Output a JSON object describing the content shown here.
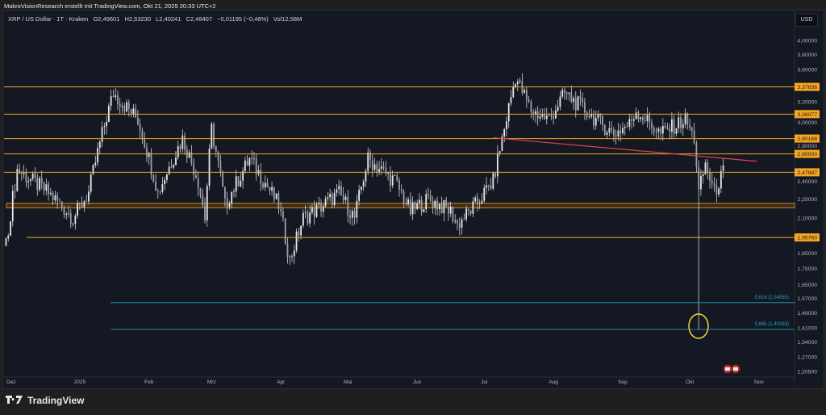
{
  "header": {
    "attribution": "MakroVisionResearch erstellt mit TradingView.com, Okt 21, 2025 20:33 UTC+2"
  },
  "legend": {
    "symbol": "XRP / US Dollar · 1T · Kraken",
    "open": "O2,49601",
    "high": "H2,53230",
    "low": "L2,40241",
    "close": "C2,48407",
    "change": "−0,01195 (−0,48%)",
    "volume": "Vol12,58M"
  },
  "currency": "USD",
  "footer": {
    "brand": "TradingView"
  },
  "colors": {
    "level": "#f5a623",
    "trend": "#e0405a",
    "fib": "#1ea7c4",
    "circle": "#f2d338",
    "candle": "#e8e8e8"
  },
  "chart_data": {
    "type": "candlestick",
    "scale": "log",
    "price_ticks": [
      "4,00000",
      "3,80000",
      "3,60000",
      "3,20000",
      "3,00000",
      "2,80000",
      "2,40000",
      "2,25000",
      "2,10000",
      "1,85000",
      "1,75000",
      "1,65000",
      "1,57000",
      "1,49000",
      "1,41000",
      "1,34000",
      "1,27000",
      "1,20500"
    ],
    "price_tick_values": [
      4.0,
      3.8,
      3.6,
      3.2,
      3.0,
      2.8,
      2.4,
      2.25,
      2.1,
      1.85,
      1.75,
      1.65,
      1.57,
      1.49,
      1.41,
      1.34,
      1.27,
      1.205
    ],
    "time_ticks": [
      {
        "label": "Dez",
        "day": 0
      },
      {
        "label": "2025",
        "day": 31
      },
      {
        "label": "Feb",
        "day": 62
      },
      {
        "label": "Mrz",
        "day": 90
      },
      {
        "label": "Apr",
        "day": 121
      },
      {
        "label": "Mai",
        "day": 151
      },
      {
        "label": "Jun",
        "day": 182
      },
      {
        "label": "Jul",
        "day": 212
      },
      {
        "label": "Aug",
        "day": 243
      },
      {
        "label": "Sep",
        "day": 274
      },
      {
        "label": "Okt",
        "day": 304
      },
      {
        "label": "Nov",
        "day": 335
      }
    ],
    "close_path_day_price": [
      [
        -2,
        1.9
      ],
      [
        3,
        2.5
      ],
      [
        17,
        2.3
      ],
      [
        28,
        2.1
      ],
      [
        35,
        2.3
      ],
      [
        46,
        3.3
      ],
      [
        57,
        3.0
      ],
      [
        66,
        2.3
      ],
      [
        77,
        2.8
      ],
      [
        84,
        2.4
      ],
      [
        87,
        2.1
      ],
      [
        90,
        2.9
      ],
      [
        96,
        2.2
      ],
      [
        107,
        2.6
      ],
      [
        120,
        2.2
      ],
      [
        125,
        1.8
      ],
      [
        131,
        2.1
      ],
      [
        140,
        2.2
      ],
      [
        147,
        2.3
      ],
      [
        154,
        2.1
      ],
      [
        160,
        2.6
      ],
      [
        172,
        2.4
      ],
      [
        179,
        2.15
      ],
      [
        187,
        2.25
      ],
      [
        197,
        2.15
      ],
      [
        200,
        2.05
      ],
      [
        208,
        2.2
      ],
      [
        216,
        2.4
      ],
      [
        221,
        2.9
      ],
      [
        226,
        3.5
      ],
      [
        233,
        3.1
      ],
      [
        241,
        3.0
      ],
      [
        248,
        3.3
      ],
      [
        262,
        3.0
      ],
      [
        270,
        2.85
      ],
      [
        277,
        2.95
      ],
      [
        280,
        3.1
      ],
      [
        291,
        2.85
      ],
      [
        302,
        3.0
      ],
      [
        306,
        2.8
      ],
      [
        308,
        2.3
      ],
      [
        311,
        2.55
      ],
      [
        315,
        2.3
      ],
      [
        319,
        2.48
      ]
    ],
    "flash_crash": {
      "day": 308,
      "low": 1.4
    },
    "levels": [
      {
        "label": "3,37836",
        "value": 3.37836
      },
      {
        "label": "3,06077",
        "value": 3.06077
      },
      {
        "label": "2,80168",
        "value": 2.80168
      },
      {
        "label": "2,65000",
        "value": 2.65
      },
      {
        "label": "2,47887",
        "value": 2.47887
      },
      {
        "label": "1,95760",
        "value": 1.9576
      }
    ],
    "zone": [
      2.18,
      2.215
    ],
    "fib": [
      {
        "label": "0,618 (1,54565)",
        "value": 1.54565
      },
      {
        "label": "0,665 (1,40263)",
        "value": 1.40263
      }
    ],
    "trendline": [
      [
        216,
        2.81
      ],
      [
        334,
        2.58
      ]
    ]
  }
}
